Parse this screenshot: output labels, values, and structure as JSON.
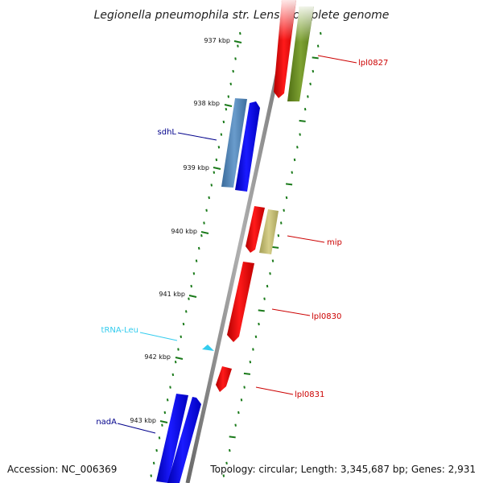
{
  "title": "Legionella pneumophila str. Lens, complete genome",
  "footer": {
    "accession": "Accession: NC_006369",
    "topology": "Topology: circular; Length: 3,345,687 bp; Genes: 2,931"
  },
  "ticks": [
    "937 kbp",
    "938 kbp",
    "939 kbp",
    "940 kbp",
    "941 kbp",
    "942 kbp",
    "943 kbp"
  ],
  "genes": [
    {
      "label": "lpl0827",
      "color": "#cc0000"
    },
    {
      "label": "sdhL",
      "color": "#00008b"
    },
    {
      "label": "mip",
      "color": "#cc0000"
    },
    {
      "label": "lpl0830",
      "color": "#cc0000"
    },
    {
      "label": "tRNA-Leu",
      "color": "#33ccee"
    },
    {
      "label": "lpl0831",
      "color": "#cc0000"
    },
    {
      "label": "nadA",
      "color": "#00008b"
    }
  ],
  "colors": {
    "backbone": "#808080",
    "tick": "#1a7a1a",
    "red_feature": "#ee0000",
    "blue_feature": "#0000ee",
    "steel_feature": "#4a7fb5",
    "olive_feature": "#6b8e23",
    "khaki_feature": "#bdb76b"
  }
}
